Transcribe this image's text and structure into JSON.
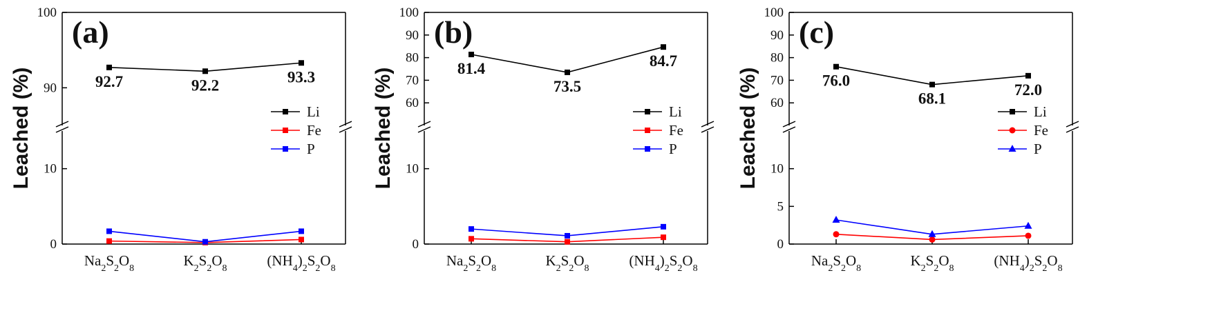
{
  "chart_data": [
    {
      "type": "line",
      "panel_label": "(a)",
      "ylabel": "Leached (%)",
      "categories": [
        "Na2S2O8",
        "K2S2O8",
        "(NH4)2S2O8"
      ],
      "axis_break": true,
      "lower_ylim": [
        0,
        15
      ],
      "upper_ylim": [
        85,
        100
      ],
      "lower_ticks": [
        0,
        10
      ],
      "upper_ticks": [
        90,
        100
      ],
      "series": [
        {
          "name": "Li",
          "color": "#000000",
          "marker": "square",
          "values": [
            92.7,
            92.2,
            93.3
          ],
          "labels": [
            "92.7",
            "92.2",
            "93.3"
          ]
        },
        {
          "name": "Fe",
          "color": "#ff0000",
          "marker": "square",
          "values": [
            0.4,
            0.2,
            0.6
          ]
        },
        {
          "name": "P",
          "color": "#0000ff",
          "marker": "square",
          "values": [
            1.7,
            0.3,
            1.7
          ]
        }
      ]
    },
    {
      "type": "line",
      "panel_label": "(b)",
      "ylabel": "Leached (%)",
      "categories": [
        "Na2S2O8",
        "K2S2O8",
        "(NH4)2S2O8"
      ],
      "axis_break": true,
      "lower_ylim": [
        0,
        15
      ],
      "upper_ylim": [
        50,
        100
      ],
      "lower_ticks": [
        0,
        10
      ],
      "upper_ticks": [
        60,
        70,
        80,
        90,
        100
      ],
      "series": [
        {
          "name": "Li",
          "color": "#000000",
          "marker": "square",
          "values": [
            81.4,
            73.5,
            84.7
          ],
          "labels": [
            "81.4",
            "73.5",
            "84.7"
          ]
        },
        {
          "name": "Fe",
          "color": "#ff0000",
          "marker": "square",
          "values": [
            0.7,
            0.3,
            0.9
          ]
        },
        {
          "name": "P",
          "color": "#0000ff",
          "marker": "square",
          "values": [
            2.0,
            1.1,
            2.3
          ]
        }
      ]
    },
    {
      "type": "line",
      "panel_label": "(c)",
      "ylabel": "Leached (%)",
      "categories": [
        "Na2S2O8",
        "K2S2O8",
        "(NH4)2S2O8"
      ],
      "axis_break": true,
      "lower_ylim": [
        0,
        15
      ],
      "upper_ylim": [
        50,
        100
      ],
      "lower_ticks": [
        0,
        5,
        10
      ],
      "upper_ticks": [
        60,
        70,
        80,
        90,
        100
      ],
      "series": [
        {
          "name": "Li",
          "color": "#000000",
          "marker": "square",
          "values": [
            76.0,
            68.1,
            72.0
          ],
          "labels": [
            "76.0",
            "68.1",
            "72.0"
          ]
        },
        {
          "name": "Fe",
          "color": "#ff0000",
          "marker": "circle",
          "values": [
            1.3,
            0.6,
            1.1
          ]
        },
        {
          "name": "P",
          "color": "#0000ff",
          "marker": "triangle",
          "values": [
            3.2,
            1.3,
            2.4
          ]
        }
      ]
    }
  ]
}
